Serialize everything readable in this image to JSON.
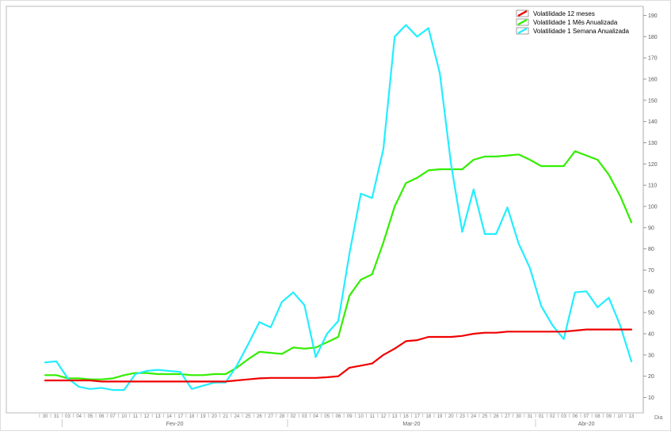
{
  "chart_data": {
    "type": "line",
    "xlabel": "Dia",
    "ylabel": "",
    "ylim": [
      0,
      195
    ],
    "y_ticks": [
      10,
      20,
      30,
      40,
      50,
      60,
      70,
      80,
      90,
      100,
      110,
      120,
      130,
      140,
      150,
      160,
      170,
      180,
      190
    ],
    "grid": false,
    "legend_position": "top-right",
    "x_tick_labels": [
      "30",
      "31",
      "03",
      "04",
      "05",
      "06",
      "07",
      "10",
      "11",
      "12",
      "13",
      "14",
      "17",
      "18",
      "19",
      "20",
      "21",
      "24",
      "25",
      "26",
      "27",
      "28",
      "02",
      "03",
      "04",
      "05",
      "06",
      "09",
      "10",
      "11",
      "12",
      "13",
      "16",
      "17",
      "18",
      "19",
      "20",
      "23",
      "24",
      "25",
      "26",
      "27",
      "30",
      "31",
      "01",
      "02",
      "03",
      "06",
      "07",
      "08",
      "09",
      "10",
      "13"
    ],
    "month_labels": [
      {
        "label": "Fev-20",
        "start_index": 2,
        "end_index": 21
      },
      {
        "label": "Mar-20",
        "start_index": 22,
        "end_index": 43
      },
      {
        "label": "Abr-20",
        "start_index": 44,
        "end_index": 52
      }
    ],
    "series": [
      {
        "name": "Volatilidade 12 meses",
        "color": "#ee0000",
        "values": [
          18,
          18,
          18,
          18,
          18,
          17.5,
          17.5,
          17.5,
          17.5,
          17.5,
          17.5,
          17.5,
          17.5,
          17.5,
          17.5,
          17.5,
          17.5,
          18,
          18.5,
          19,
          19.2,
          19.2,
          19.2,
          19.2,
          19.2,
          19.5,
          20,
          24,
          25,
          26,
          30,
          33,
          36.5,
          37,
          38.5,
          38.5,
          38.5,
          39,
          40,
          40.5,
          40.5,
          41,
          41,
          41,
          41,
          41,
          41,
          41.5,
          42,
          42,
          42,
          42,
          42
        ]
      },
      {
        "name": "Volatilidade 1 Mês Anualizada",
        "color": "#33ee00",
        "values": [
          20.5,
          20.5,
          19,
          19,
          18.5,
          18.5,
          19,
          20.5,
          21.5,
          21.5,
          21,
          21,
          21,
          20.5,
          20.5,
          21,
          21,
          24,
          28,
          31.5,
          31,
          30.5,
          33.5,
          33,
          33.5,
          36,
          38.5,
          58,
          65.5,
          68,
          83,
          100,
          111,
          113.5,
          117,
          117.5,
          117.5,
          117.5,
          122,
          123.5,
          123.5,
          124,
          124.5,
          122,
          119,
          119,
          119,
          126,
          124,
          122,
          115,
          105,
          92.5
        ]
      },
      {
        "name": "Volatilidade 1 Semana Anualizada",
        "color": "#22eeff",
        "values": [
          26.5,
          27,
          19,
          15,
          14,
          14.5,
          13.5,
          13.5,
          21,
          22.5,
          23,
          22.5,
          22,
          14,
          15.5,
          17,
          17,
          25,
          35,
          45.5,
          43,
          55,
          59.5,
          53.5,
          29,
          40,
          46,
          78,
          106,
          104,
          127,
          180,
          185.5,
          180,
          184,
          163,
          120,
          88,
          108,
          87,
          87,
          99.5,
          82.5,
          71,
          53,
          44,
          37.5,
          59.5,
          60,
          52.5,
          57,
          44,
          27
        ]
      }
    ]
  }
}
